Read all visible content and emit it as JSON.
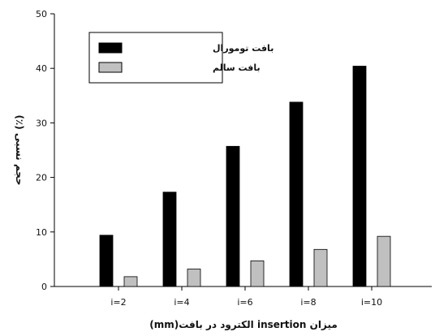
{
  "chart_data": {
    "type": "bar",
    "categories": [
      "i=2",
      "i=4",
      "i=6",
      "i=8",
      "i=10"
    ],
    "series": [
      {
        "name": "بافت تومورال",
        "color": "#000000",
        "values": [
          9.4,
          17.3,
          25.7,
          33.8,
          40.4
        ]
      },
      {
        "name": "بافت سالم",
        "color": "#c0c0c0",
        "values": [
          1.8,
          3.2,
          4.7,
          6.8,
          9.2
        ]
      }
    ],
    "yticks": [
      0,
      10,
      20,
      30,
      40,
      50
    ],
    "ylim": [
      0,
      50
    ],
    "xlabel": "میزان insertion الکترود در بافت(mm)",
    "ylabel": "حجم نسبی (٪)",
    "legend_position": "top-left",
    "grid": false
  }
}
